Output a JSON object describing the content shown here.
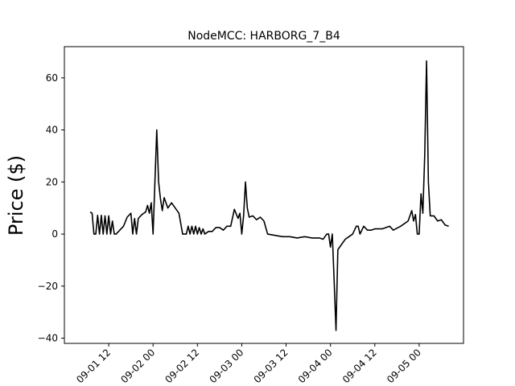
{
  "chart_data": {
    "type": "line",
    "title": "NodeMCC: HARBORG_7_B4",
    "xlabel": "",
    "ylabel": "Price ($)",
    "xlim": [
      "2020-09-01 00:00",
      "2020-09-05 12:00"
    ],
    "ylim": [
      -42,
      72
    ],
    "x_ticks": [
      "2020-09-01 12:00",
      "2020-09-02 00:00",
      "2020-09-02 12:00",
      "2020-09-03 00:00",
      "2020-09-03 12:00",
      "2020-09-04 00:00",
      "2020-09-04 12:00",
      "2020-09-05 00:00"
    ],
    "x_tick_labels": [
      "09-01 12",
      "09-02 00",
      "09-02 12",
      "09-03 00",
      "09-03 12",
      "09-04 00",
      "09-04 12",
      "09-05 00"
    ],
    "y_ticks": [
      -40,
      -20,
      0,
      20,
      40,
      60
    ],
    "y_tick_labels": [
      "−40",
      "−20",
      "0",
      "20",
      "40",
      "60"
    ],
    "line_color": "#000000",
    "grid": false,
    "series": [
      {
        "points": [
          [
            "2020-09-01 07:00",
            8.5
          ],
          [
            "2020-09-01 07:30",
            8.0
          ],
          [
            "2020-09-01 08:00",
            0.0
          ],
          [
            "2020-09-01 08:30",
            0.0
          ],
          [
            "2020-09-01 09:00",
            7.2
          ],
          [
            "2020-09-01 09:30",
            0.0
          ],
          [
            "2020-09-01 10:00",
            7.2
          ],
          [
            "2020-09-01 10:30",
            0.0
          ],
          [
            "2020-09-01 11:00",
            7.0
          ],
          [
            "2020-09-01 11:30",
            0.0
          ],
          [
            "2020-09-01 12:00",
            7.0
          ],
          [
            "2020-09-01 12:30",
            0.0
          ],
          [
            "2020-09-01 13:00",
            5.0
          ],
          [
            "2020-09-01 13:30",
            0.0
          ],
          [
            "2020-09-01 14:00",
            0.0
          ],
          [
            "2020-09-01 15:00",
            1.5
          ],
          [
            "2020-09-01 16:00",
            3.0
          ],
          [
            "2020-09-01 17:00",
            6.5
          ],
          [
            "2020-09-01 18:00",
            8.0
          ],
          [
            "2020-09-01 18:30",
            0.0
          ],
          [
            "2020-09-01 19:00",
            6.0
          ],
          [
            "2020-09-01 19:30",
            0.0
          ],
          [
            "2020-09-01 20:00",
            6.0
          ],
          [
            "2020-09-01 21:00",
            7.5
          ],
          [
            "2020-09-01 22:00",
            8.5
          ],
          [
            "2020-09-01 22:30",
            11.0
          ],
          [
            "2020-09-01 23:00",
            8.0
          ],
          [
            "2020-09-01 23:30",
            12.0
          ],
          [
            "2020-09-02 00:00",
            0.0
          ],
          [
            "2020-09-02 00:30",
            20.0
          ],
          [
            "2020-09-02 01:00",
            40.0
          ],
          [
            "2020-09-02 01:30",
            20.0
          ],
          [
            "2020-09-02 02:00",
            13.5
          ],
          [
            "2020-09-02 02:30",
            9.0
          ],
          [
            "2020-09-02 03:00",
            14.0
          ],
          [
            "2020-09-02 04:00",
            10.0
          ],
          [
            "2020-09-02 05:00",
            12.0
          ],
          [
            "2020-09-02 06:00",
            10.0
          ],
          [
            "2020-09-02 07:00",
            8.0
          ],
          [
            "2020-09-02 08:00",
            0.0
          ],
          [
            "2020-09-02 09:00",
            0.0
          ],
          [
            "2020-09-02 09:30",
            3.0
          ],
          [
            "2020-09-02 10:00",
            0.0
          ],
          [
            "2020-09-02 10:30",
            3.0
          ],
          [
            "2020-09-02 11:00",
            0.0
          ],
          [
            "2020-09-02 11:30",
            3.0
          ],
          [
            "2020-09-02 12:00",
            0.0
          ],
          [
            "2020-09-02 12:30",
            2.5
          ],
          [
            "2020-09-02 13:00",
            0.0
          ],
          [
            "2020-09-02 13:30",
            2.0
          ],
          [
            "2020-09-02 14:00",
            0.0
          ],
          [
            "2020-09-02 15:00",
            1.0
          ],
          [
            "2020-09-02 16:00",
            1.0
          ],
          [
            "2020-09-02 17:00",
            2.5
          ],
          [
            "2020-09-02 18:00",
            2.5
          ],
          [
            "2020-09-02 19:00",
            1.5
          ],
          [
            "2020-09-02 20:00",
            3.0
          ],
          [
            "2020-09-02 21:00",
            3.0
          ],
          [
            "2020-09-02 22:00",
            9.5
          ],
          [
            "2020-09-02 23:00",
            6.0
          ],
          [
            "2020-09-02 23:30",
            8.0
          ],
          [
            "2020-09-03 00:00",
            0.0
          ],
          [
            "2020-09-03 00:30",
            7.0
          ],
          [
            "2020-09-03 01:00",
            20.0
          ],
          [
            "2020-09-03 01:30",
            10.0
          ],
          [
            "2020-09-03 02:00",
            6.5
          ],
          [
            "2020-09-03 03:00",
            7.0
          ],
          [
            "2020-09-03 04:00",
            5.5
          ],
          [
            "2020-09-03 05:00",
            6.5
          ],
          [
            "2020-09-03 06:00",
            5.0
          ],
          [
            "2020-09-03 07:00",
            0.0
          ],
          [
            "2020-09-03 09:00",
            -0.5
          ],
          [
            "2020-09-03 11:00",
            -1.0
          ],
          [
            "2020-09-03 13:00",
            -1.0
          ],
          [
            "2020-09-03 15:00",
            -1.5
          ],
          [
            "2020-09-03 17:00",
            -1.0
          ],
          [
            "2020-09-03 19:00",
            -1.5
          ],
          [
            "2020-09-03 21:00",
            -1.5
          ],
          [
            "2020-09-03 22:00",
            -2.0
          ],
          [
            "2020-09-03 23:00",
            0.0
          ],
          [
            "2020-09-03 23:30",
            0.0
          ],
          [
            "2020-09-04 00:00",
            -5.0
          ],
          [
            "2020-09-04 00:30",
            0.0
          ],
          [
            "2020-09-04 01:00",
            -18.0
          ],
          [
            "2020-09-04 01:30",
            -37.0
          ],
          [
            "2020-09-04 02:00",
            -6.0
          ],
          [
            "2020-09-04 02:30",
            -5.0
          ],
          [
            "2020-09-04 03:00",
            -4.0
          ],
          [
            "2020-09-04 04:00",
            -2.0
          ],
          [
            "2020-09-04 05:00",
            -1.0
          ],
          [
            "2020-09-04 06:00",
            0.0
          ],
          [
            "2020-09-04 07:00",
            3.0
          ],
          [
            "2020-09-04 07:30",
            3.0
          ],
          [
            "2020-09-04 08:00",
            0.0
          ],
          [
            "2020-09-04 09:00",
            3.0
          ],
          [
            "2020-09-04 10:00",
            1.5
          ],
          [
            "2020-09-04 11:00",
            1.5
          ],
          [
            "2020-09-04 12:00",
            2.0
          ],
          [
            "2020-09-04 14:00",
            2.0
          ],
          [
            "2020-09-04 16:00",
            3.0
          ],
          [
            "2020-09-04 17:00",
            1.5
          ],
          [
            "2020-09-04 19:00",
            3.0
          ],
          [
            "2020-09-04 21:00",
            5.0
          ],
          [
            "2020-09-04 22:00",
            9.0
          ],
          [
            "2020-09-04 22:30",
            5.0
          ],
          [
            "2020-09-04 23:00",
            7.5
          ],
          [
            "2020-09-04 23:30",
            0.0
          ],
          [
            "2020-09-05 00:00",
            0.0
          ],
          [
            "2020-09-05 00:30",
            15.5
          ],
          [
            "2020-09-05 01:00",
            8.0
          ],
          [
            "2020-09-05 01:30",
            30.0
          ],
          [
            "2020-09-05 02:00",
            66.5
          ],
          [
            "2020-09-05 02:30",
            20.0
          ],
          [
            "2020-09-05 03:00",
            7.0
          ],
          [
            "2020-09-05 04:00",
            7.0
          ],
          [
            "2020-09-05 05:00",
            5.0
          ],
          [
            "2020-09-05 06:00",
            5.5
          ],
          [
            "2020-09-05 07:00",
            3.5
          ],
          [
            "2020-09-05 08:00",
            3.0
          ]
        ]
      }
    ]
  }
}
